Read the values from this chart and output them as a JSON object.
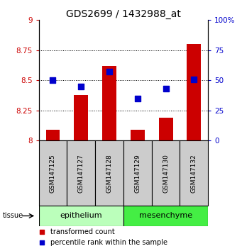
{
  "title": "GDS2699 / 1432988_at",
  "samples": [
    "GSM147125",
    "GSM147127",
    "GSM147128",
    "GSM147129",
    "GSM147130",
    "GSM147132"
  ],
  "red_values": [
    8.09,
    8.38,
    8.62,
    8.09,
    8.19,
    8.8
  ],
  "blue_values": [
    50,
    45,
    57,
    35,
    43,
    51
  ],
  "ylim_left": [
    8.0,
    9.0
  ],
  "ylim_right": [
    0,
    100
  ],
  "yticks_left": [
    8.0,
    8.25,
    8.5,
    8.75,
    9.0
  ],
  "ytick_labels_left": [
    "8",
    "8.25",
    "8.5",
    "8.75",
    "9"
  ],
  "yticks_right": [
    0,
    25,
    50,
    75,
    100
  ],
  "ytick_labels_right": [
    "0",
    "25",
    "50",
    "75",
    "100%"
  ],
  "bar_color": "#cc0000",
  "dot_color": "#0000cc",
  "bar_width": 0.5,
  "dot_size": 30,
  "title_fontsize": 10,
  "tick_fontsize": 7.5,
  "sample_fontsize": 6.5,
  "tissue_fontsize": 8,
  "legend_fontsize": 7,
  "tissue_label": "tissue",
  "legend_red": "transformed count",
  "legend_blue": "percentile rank within the sample",
  "sample_box_color": "#cccccc",
  "tissue_epithelium_color": "#bbffbb",
  "tissue_mesenchyme_color": "#44ee44",
  "epi_samples": [
    "GSM147125",
    "GSM147127",
    "GSM147128"
  ],
  "mes_samples": [
    "GSM147129",
    "GSM147130",
    "GSM147132"
  ]
}
